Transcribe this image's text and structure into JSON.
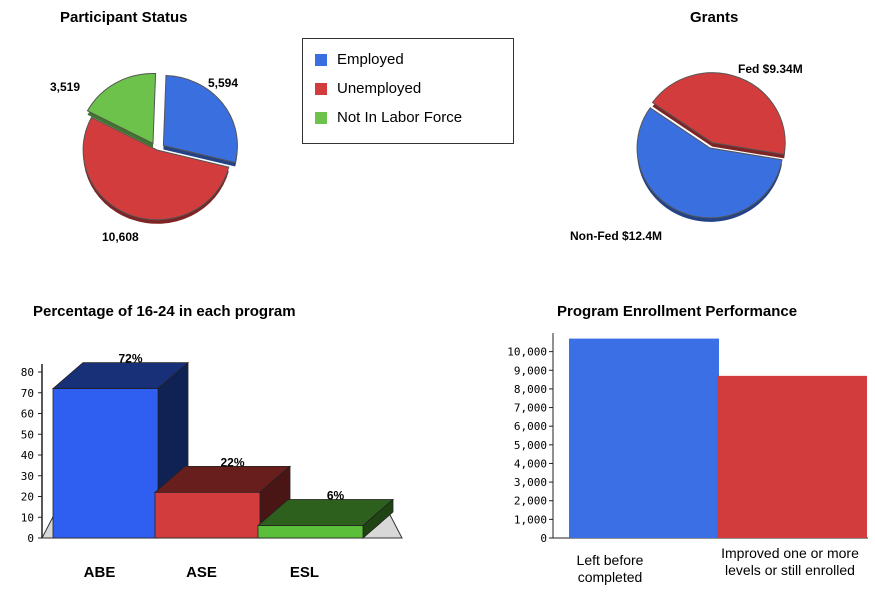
{
  "charts": {
    "participant_status": {
      "title": "Participant Status",
      "legend": [
        {
          "label": "Employed",
          "color": "#3a6fe0"
        },
        {
          "label": "Unemployed",
          "color": "#d23c3c"
        },
        {
          "label": "Not In Labor Force",
          "color": "#6cc24a"
        }
      ],
      "labels": {
        "employed": "5,594",
        "unemployed": "10,608",
        "nilf": "3,519"
      }
    },
    "grants": {
      "title": "Grants",
      "labels": {
        "fed": "Fed $9.34M",
        "nonfed": "Non-Fed $12.4M"
      }
    },
    "pct_1624": {
      "title": "Percentage of 16-24 in each program",
      "value_labels": [
        "72%",
        "22%",
        "6%"
      ],
      "categories": [
        "ABE",
        "ASE",
        "ESL"
      ],
      "yticks": [
        "80",
        "70",
        "60",
        "50",
        "40",
        "30",
        "20",
        "10",
        "0"
      ]
    },
    "enrollment": {
      "title": "Program Enrollment Performance",
      "categories": [
        "Left before completed",
        "Improved one or more levels or still enrolled"
      ],
      "yticks": [
        "10,000",
        "9,000",
        "8,000",
        "7,000",
        "6,000",
        "5,000",
        "4,000",
        "3,000",
        "2,000",
        "1,000",
        "0"
      ]
    }
  },
  "chart_data": [
    {
      "type": "pie",
      "title": "Participant Status",
      "categories": [
        "Employed",
        "Unemployed",
        "Not In Labor Force"
      ],
      "values": [
        5594,
        10608,
        3519
      ],
      "colors": [
        "#3a6fe0",
        "#d23c3c",
        "#6cc24a"
      ],
      "legend": "top-right"
    },
    {
      "type": "pie",
      "title": "Grants",
      "categories": [
        "Fed",
        "Non-Fed"
      ],
      "values": [
        9.34,
        12.4
      ],
      "colors": [
        "#d23c3c",
        "#3a6fe0"
      ]
    },
    {
      "type": "bar",
      "title": "Percentage of 16-24 in each program",
      "categories": [
        "ABE",
        "ASE",
        "ESL"
      ],
      "values": [
        72,
        22,
        6
      ],
      "colors": [
        "#2f5ff0",
        "#d23c3c",
        "#5bbf3a"
      ],
      "ylim": [
        0,
        80
      ],
      "style": "3d"
    },
    {
      "type": "bar",
      "title": "Program Enrollment Performance",
      "categories": [
        "Left before completed",
        "Improved one or more levels or still enrolled"
      ],
      "values": [
        10700,
        8700
      ],
      "colors": [
        "#3b6fe6",
        "#d23c3c"
      ],
      "ylim": [
        0,
        11000
      ]
    }
  ]
}
